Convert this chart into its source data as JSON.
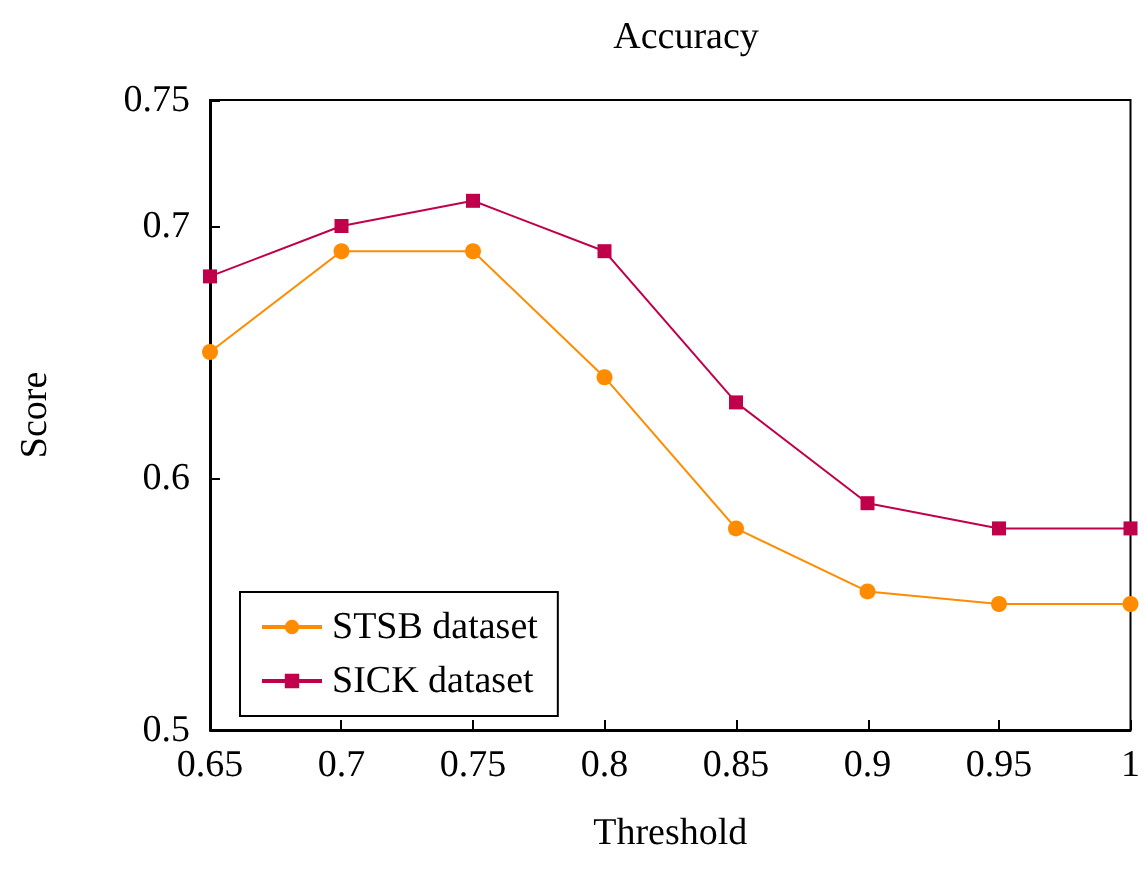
{
  "chart_data": {
    "type": "line",
    "title": "Accuracy",
    "xlabel": "Threshold",
    "ylabel": "Score",
    "x": [
      0.65,
      0.7,
      0.75,
      0.8,
      0.85,
      0.9,
      0.95,
      1
    ],
    "series": [
      {
        "name": "STSB dataset",
        "color": "#ff8c00",
        "marker": "circle",
        "values": [
          0.65,
          0.69,
          0.69,
          0.64,
          0.58,
          0.555,
          0.55,
          0.55
        ]
      },
      {
        "name": "SICK dataset",
        "color": "#c0004a",
        "marker": "square",
        "values": [
          0.68,
          0.7,
          0.71,
          0.69,
          0.63,
          0.59,
          0.58,
          0.58
        ]
      }
    ],
    "xlim": [
      0.65,
      1
    ],
    "xticks": [
      0.65,
      0.7,
      0.75,
      0.8,
      0.85,
      0.9,
      0.95,
      1
    ],
    "ylim": [
      0.5,
      0.75
    ],
    "yticks": [
      0.5,
      0.6,
      0.7,
      0.75
    ],
    "grid": false,
    "legend": "bottom left"
  }
}
